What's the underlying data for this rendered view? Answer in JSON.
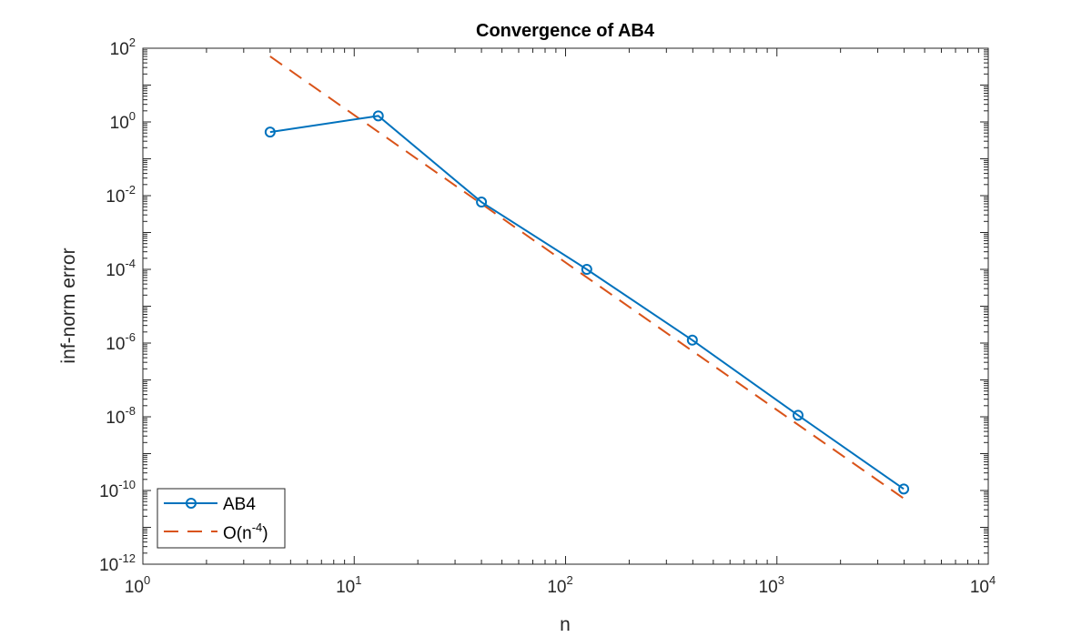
{
  "chart_data": {
    "type": "line",
    "title": "Convergence of AB4",
    "xlabel": "n",
    "ylabel": "inf-norm error",
    "xscale": "log",
    "yscale": "log",
    "xlim": [
      1,
      10000
    ],
    "ylim": [
      1e-12,
      100
    ],
    "xticks": [
      {
        "base": "10",
        "exp": "0",
        "value": 1
      },
      {
        "base": "10",
        "exp": "1",
        "value": 10
      },
      {
        "base": "10",
        "exp": "2",
        "value": 100
      },
      {
        "base": "10",
        "exp": "3",
        "value": 1000
      },
      {
        "base": "10",
        "exp": "4",
        "value": 10000
      }
    ],
    "yticks": [
      {
        "base": "10",
        "exp": "2",
        "value": 100
      },
      {
        "base": "10",
        "exp": "0",
        "value": 1
      },
      {
        "base": "10",
        "exp": "-2",
        "value": 0.01
      },
      {
        "base": "10",
        "exp": "-4",
        "value": 0.0001
      },
      {
        "base": "10",
        "exp": "-6",
        "value": 1e-06
      },
      {
        "base": "10",
        "exp": "-8",
        "value": 1e-08
      },
      {
        "base": "10",
        "exp": "-10",
        "value": 1e-10
      },
      {
        "base": "10",
        "exp": "-12",
        "value": 1e-12
      }
    ],
    "grid": false,
    "legend_position": "bottom-left",
    "series": [
      {
        "name": "AB4",
        "style": "solid",
        "marker": "circle",
        "color": "#0072BD",
        "x": [
          4,
          13,
          40,
          126,
          398,
          1259,
          3981
        ],
        "y": [
          0.53,
          1.46,
          0.0067,
          0.0001,
          1.2e-06,
          1.1e-08,
          1.1e-10
        ]
      },
      {
        "name": "O(n^-4)",
        "legend_text": "O(n",
        "legend_sup": "-4",
        "legend_tail": ")",
        "style": "dashed",
        "color": "#D95319",
        "x": [
          4,
          3981
        ],
        "y": [
          60,
          6.1e-11
        ]
      }
    ]
  }
}
